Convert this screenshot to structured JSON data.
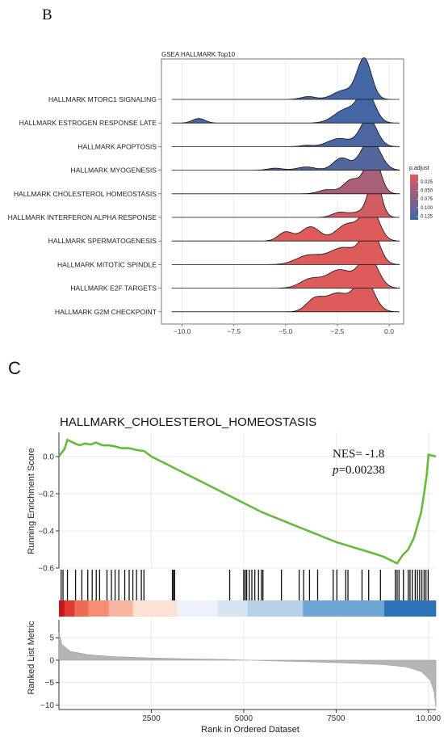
{
  "panels": {
    "b_letter": "B",
    "c_letter": "C"
  },
  "chart_data": [
    {
      "type": "ridgeline",
      "title": "GSEA HALLMARK Top10",
      "xlabel": "",
      "ylabel": "",
      "xlim": [
        -11,
        0.7
      ],
      "x_ticks": [
        -10.0,
        -7.5,
        -5.0,
        -2.5,
        0.0
      ],
      "x_tick_labels": [
        "−10.0",
        "−7.5",
        "−5.0",
        "−2.5",
        "0.0"
      ],
      "grid": true,
      "legend": {
        "title": "p.adjust",
        "placement": "right",
        "ticks": [
          "0.025",
          "0.050",
          "0.075",
          "0.100",
          "0.125"
        ],
        "color_low": "#de5b5b",
        "color_high": "#3f67a8"
      },
      "series": [
        {
          "name": "HALLMARK MTORC1 SIGNALING",
          "p_adjust": 0.125,
          "x_range": [
            -10.5,
            0.5
          ],
          "components": [
            [
              -1.2,
              0.35,
              1.0
            ],
            [
              -2.2,
              0.5,
              0.22
            ],
            [
              -3.9,
              0.35,
              0.07
            ]
          ]
        },
        {
          "name": "HALLMARK ESTROGEN RESPONSE LATE",
          "p_adjust": 0.125,
          "x_range": [
            -10.5,
            0.5
          ],
          "components": [
            [
              -1.1,
              0.4,
              0.75
            ],
            [
              -2.1,
              0.55,
              0.33
            ],
            [
              -9.2,
              0.3,
              0.11
            ]
          ]
        },
        {
          "name": "HALLMARK APOPTOSIS",
          "p_adjust": 0.12,
          "x_range": [
            -10.5,
            0.5
          ],
          "components": [
            [
              -1.0,
              0.4,
              0.7
            ],
            [
              -2.4,
              0.55,
              0.2
            ],
            [
              -4.0,
              0.3,
              0.03
            ]
          ]
        },
        {
          "name": "HALLMARK MYOGENESIS",
          "p_adjust": 0.115,
          "x_range": [
            -10.5,
            0.5
          ],
          "components": [
            [
              -0.9,
              0.45,
              0.78
            ],
            [
              -2.3,
              0.4,
              0.3
            ],
            [
              -4.0,
              0.45,
              0.08
            ],
            [
              -5.5,
              0.35,
              0.05
            ]
          ]
        },
        {
          "name": "HALLMARK CHOLESTEROL HOMEOSTASIS",
          "p_adjust": 0.05,
          "x_range": [
            -10.5,
            0.5
          ],
          "components": [
            [
              -0.8,
              0.35,
              1.0
            ],
            [
              -1.8,
              0.4,
              0.35
            ],
            [
              -3.0,
              0.4,
              0.1
            ]
          ]
        },
        {
          "name": "HALLMARK INTERFERON ALPHA RESPONSE",
          "p_adjust": 0.02,
          "x_range": [
            -10.5,
            0.5
          ],
          "components": [
            [
              -0.7,
              0.3,
              1.0
            ],
            [
              -2.4,
              0.35,
              0.12
            ],
            [
              -1.5,
              0.4,
              0.12
            ]
          ]
        },
        {
          "name": "HALLMARK SPERMATOGENESIS",
          "p_adjust": 0.01,
          "x_range": [
            -10.5,
            0.5
          ],
          "components": [
            [
              -0.9,
              0.4,
              0.82
            ],
            [
              -2.0,
              0.55,
              0.42
            ],
            [
              -3.8,
              0.45,
              0.35
            ],
            [
              -5.0,
              0.35,
              0.22
            ]
          ]
        },
        {
          "name": "HALLMARK MITOTIC SPINDLE",
          "p_adjust": 0.01,
          "x_range": [
            -10.5,
            0.5
          ],
          "components": [
            [
              -0.9,
              0.4,
              0.88
            ],
            [
              -2.2,
              0.7,
              0.42
            ],
            [
              -3.9,
              0.6,
              0.22
            ]
          ]
        },
        {
          "name": "HALLMARK E2F TARGETS",
          "p_adjust": 0.01,
          "x_range": [
            -10.5,
            0.5
          ],
          "components": [
            [
              -1.0,
              0.45,
              0.78
            ],
            [
              -2.4,
              0.6,
              0.45
            ],
            [
              -3.8,
              0.5,
              0.22
            ]
          ]
        },
        {
          "name": "HALLMARK G2M CHECKPOINT",
          "p_adjust": 0.01,
          "x_range": [
            -10.5,
            0.5
          ],
          "components": [
            [
              -1.2,
              0.45,
              0.82
            ],
            [
              -2.5,
              0.55,
              0.45
            ],
            [
              -3.6,
              0.4,
              0.3
            ]
          ]
        }
      ]
    },
    {
      "type": "line",
      "title": "HALLMARK_CHOLESTEROL_HOMEOSTASIS",
      "xlabel": "Rank in Ordered Dataset",
      "ylabel": "Running Enrichment Score",
      "ylabel_bottom": "Ranked List Metric",
      "xlim": [
        0,
        10200
      ],
      "x_ticks": [
        2500,
        5000,
        7500,
        10000
      ],
      "x_tick_labels": [
        "2500",
        "5000",
        "7500",
        "10,000"
      ],
      "ylim": [
        -0.6,
        0.13
      ],
      "y_ticks": [
        0.0,
        -0.2,
        -0.4,
        -0.6
      ],
      "y_tick_labels": [
        "0.0",
        "−0.2",
        "−0.4",
        "−0.6"
      ],
      "metric_ylim": [
        -11,
        9
      ],
      "metric_ticks": [
        5,
        0,
        -5,
        -10
      ],
      "metric_tick_labels": [
        "5",
        "0",
        "−5",
        "−10"
      ],
      "line_color": "#66bb3c",
      "NES_label": "NES= -1.8",
      "p_label": "p",
      "p_value": "=0.00238",
      "running_es": [
        [
          0,
          0.0
        ],
        [
          70,
          0.02
        ],
        [
          150,
          0.04
        ],
        [
          230,
          0.09
        ],
        [
          380,
          0.075
        ],
        [
          560,
          0.06
        ],
        [
          700,
          0.07
        ],
        [
          860,
          0.065
        ],
        [
          1000,
          0.075
        ],
        [
          1180,
          0.06
        ],
        [
          1360,
          0.06
        ],
        [
          1500,
          0.055
        ],
        [
          1700,
          0.045
        ],
        [
          1900,
          0.045
        ],
        [
          2100,
          0.035
        ],
        [
          2300,
          0.03
        ],
        [
          2500,
          0.0
        ],
        [
          3000,
          -0.05
        ],
        [
          3500,
          -0.1
        ],
        [
          4000,
          -0.15
        ],
        [
          4500,
          -0.2
        ],
        [
          5000,
          -0.25
        ],
        [
          5500,
          -0.3
        ],
        [
          6000,
          -0.34
        ],
        [
          6500,
          -0.38
        ],
        [
          7000,
          -0.42
        ],
        [
          7500,
          -0.46
        ],
        [
          8000,
          -0.49
        ],
        [
          8500,
          -0.52
        ],
        [
          8800,
          -0.54
        ],
        [
          9150,
          -0.575
        ],
        [
          9300,
          -0.53
        ],
        [
          9450,
          -0.5
        ],
        [
          9600,
          -0.44
        ],
        [
          9700,
          -0.37
        ],
        [
          9800,
          -0.3
        ],
        [
          9880,
          -0.2
        ],
        [
          9950,
          -0.1
        ],
        [
          10000,
          0.01
        ],
        [
          10200,
          0.0
        ]
      ],
      "hits": [
        60,
        110,
        230,
        450,
        620,
        780,
        900,
        1010,
        1100,
        1300,
        1420,
        1520,
        1620,
        1780,
        1900,
        2000,
        2100,
        2230,
        2300,
        3070,
        3100,
        3130,
        4620,
        5000,
        5040,
        5080,
        5150,
        5220,
        5300,
        5400,
        5480,
        5520,
        6020,
        6500,
        6620,
        6780,
        7000,
        7420,
        7520,
        7760,
        7820,
        8200,
        8380,
        8700,
        9100,
        9150,
        9200,
        9320,
        9450,
        9500,
        9560,
        9640,
        9700,
        9760,
        9820,
        9880,
        9930,
        9990
      ],
      "metric_curve": [
        [
          0,
          6.2
        ],
        [
          80,
          3.5
        ],
        [
          300,
          2.0
        ],
        [
          800,
          1.2
        ],
        [
          1500,
          0.8
        ],
        [
          2500,
          0.5
        ],
        [
          3500,
          0.3
        ],
        [
          4500,
          0.15
        ],
        [
          5200,
          0.0
        ],
        [
          6000,
          -0.2
        ],
        [
          7000,
          -0.4
        ],
        [
          8000,
          -0.7
        ],
        [
          8800,
          -1.0
        ],
        [
          9400,
          -1.5
        ],
        [
          9800,
          -2.5
        ],
        [
          10050,
          -4.5
        ],
        [
          10150,
          -7.0
        ],
        [
          10200,
          -10.5
        ]
      ],
      "color_bar": [
        [
          0,
          150,
          "#c4161c"
        ],
        [
          150,
          420,
          "#e03b33"
        ],
        [
          420,
          800,
          "#ee6a52"
        ],
        [
          800,
          1350,
          "#f58e74"
        ],
        [
          1350,
          2000,
          "#f9b59f"
        ],
        [
          2000,
          3200,
          "#fde0d4"
        ],
        [
          3200,
          4300,
          "#eef0fb"
        ],
        [
          4300,
          5100,
          "#d7e4f3"
        ],
        [
          5100,
          6600,
          "#b8d2ea"
        ],
        [
          6600,
          8800,
          "#6ea6d6"
        ],
        [
          8800,
          10200,
          "#2c73b8"
        ]
      ]
    }
  ]
}
